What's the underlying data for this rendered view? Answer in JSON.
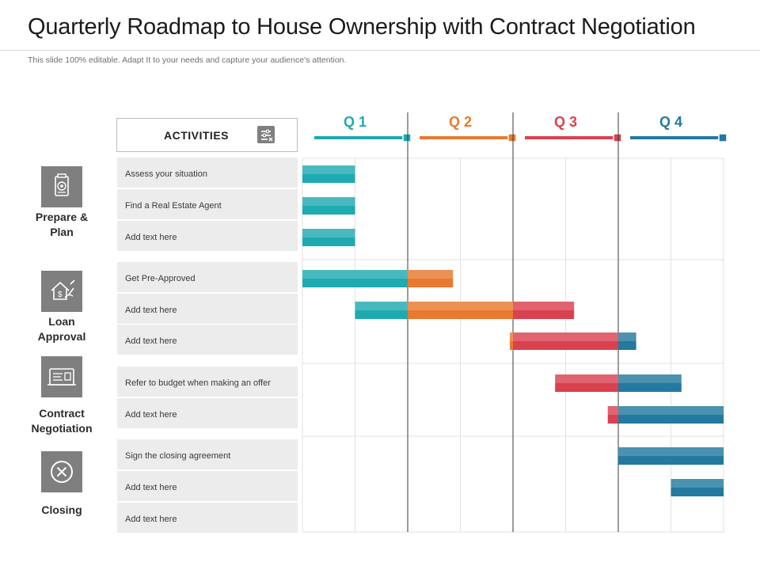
{
  "title": "Quarterly Roadmap to House Ownership with Contract Negotiation",
  "subtitle": "This slide 100% editable. Adapt  It to your needs and capture your audience's attention.",
  "activities_header": "ACTIVITIES",
  "icons": {
    "activities": "activities-list-icon",
    "prepare": "document-target-icon",
    "loan": "house-dollar-icon",
    "contract": "contract-document-icon",
    "closing": "close-circle-icon"
  },
  "phases": [
    {
      "label_lines": [
        "Prepare &",
        "Plan"
      ],
      "icon": "document-target-icon"
    },
    {
      "label_lines": [
        "Loan",
        "Approval"
      ],
      "icon": "house-dollar-icon"
    },
    {
      "label_lines": [
        "Contract",
        "Negotiation"
      ],
      "icon": "contract-document-icon"
    },
    {
      "label_lines": [
        "Closing"
      ],
      "icon": "close-circle-icon"
    }
  ],
  "chart_data": {
    "type": "gantt",
    "quarters": [
      {
        "label": "Q 1",
        "color": "#1faab1"
      },
      {
        "label": "Q 2",
        "color": "#e8792f"
      },
      {
        "label": "Q 3",
        "color": "#d9414f"
      },
      {
        "label": "Q 4",
        "color": "#23799f"
      }
    ],
    "x_unit": "quarter",
    "xlim": [
      0,
      4
    ],
    "grid": true,
    "groups": [
      {
        "phase": "Prepare & Plan",
        "tasks": [
          {
            "name": "Assess your situation",
            "start": 0,
            "end": 0.5
          },
          {
            "name": "Find a Real Estate Agent",
            "start": 0,
            "end": 0.5
          },
          {
            "name": "Add text here",
            "start": 0,
            "end": 0.5
          }
        ]
      },
      {
        "phase": "Loan Approval",
        "tasks": [
          {
            "name": "Get Pre-Approved",
            "start": 0,
            "end": 1.43
          },
          {
            "name": "Add text here",
            "start": 0.5,
            "end": 2.58
          },
          {
            "name": "Add text here",
            "start": 1.97,
            "end": 3.17
          }
        ]
      },
      {
        "phase": "Contract Negotiation",
        "tasks": [
          {
            "name": "Refer to budget when making an offer",
            "start": 2.4,
            "end": 3.6
          },
          {
            "name": "Add text here",
            "start": 2.9,
            "end": 4
          }
        ]
      },
      {
        "phase": "Closing",
        "tasks": [
          {
            "name": "Sign the closing agreement",
            "start": 3,
            "end": 4
          },
          {
            "name": "Add text here",
            "start": 3.5,
            "end": 4
          },
          {
            "name": "Add text here",
            "start": null,
            "end": null
          }
        ]
      }
    ]
  }
}
